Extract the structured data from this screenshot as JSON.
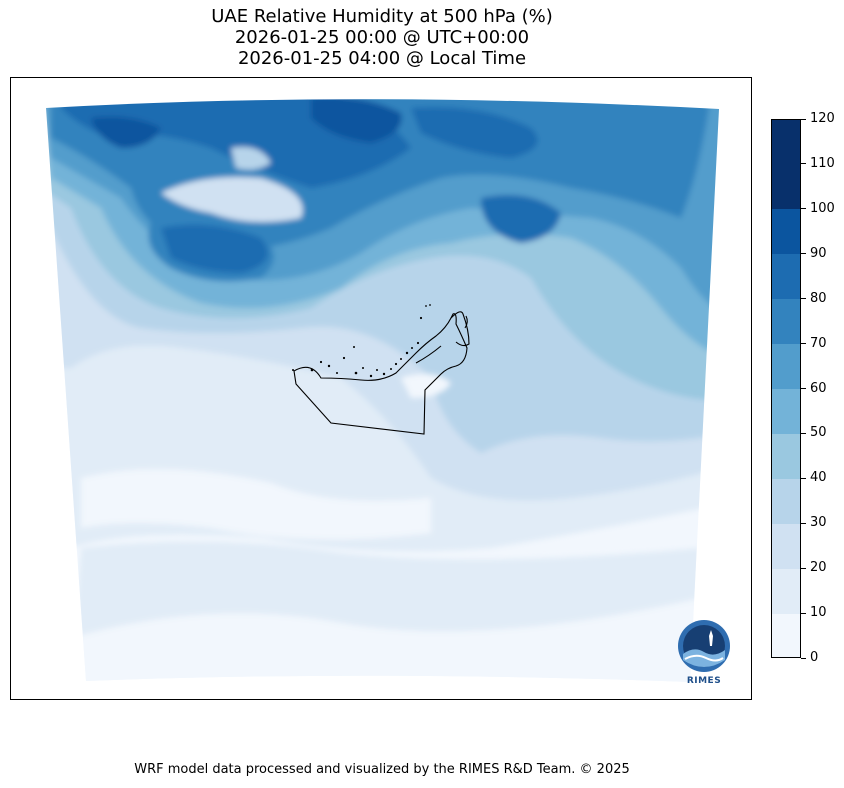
{
  "title": {
    "line1": "UAE Relative Humidity at 500 hPa (%)",
    "line2": "2026-01-25 00:00 @ UTC+00:00",
    "line3": "2026-01-25 04:00 @ Local Time"
  },
  "colorbar": {
    "ticks": [
      "0",
      "10",
      "20",
      "30",
      "40",
      "50",
      "60",
      "70",
      "80",
      "90",
      "100",
      "110",
      "120"
    ],
    "colors": [
      "#f2f7fd",
      "#e1ecf7",
      "#d0e1f2",
      "#b7d4ea",
      "#9ac8e0",
      "#73b3d8",
      "#529dcc",
      "#3383be",
      "#1d6cb1",
      "#0b559f",
      "#08306b"
    ]
  },
  "logo": {
    "name": "RIMES"
  },
  "footer": "WRF model data processed and visualized by the RIMES R&D Team. © 2025"
}
